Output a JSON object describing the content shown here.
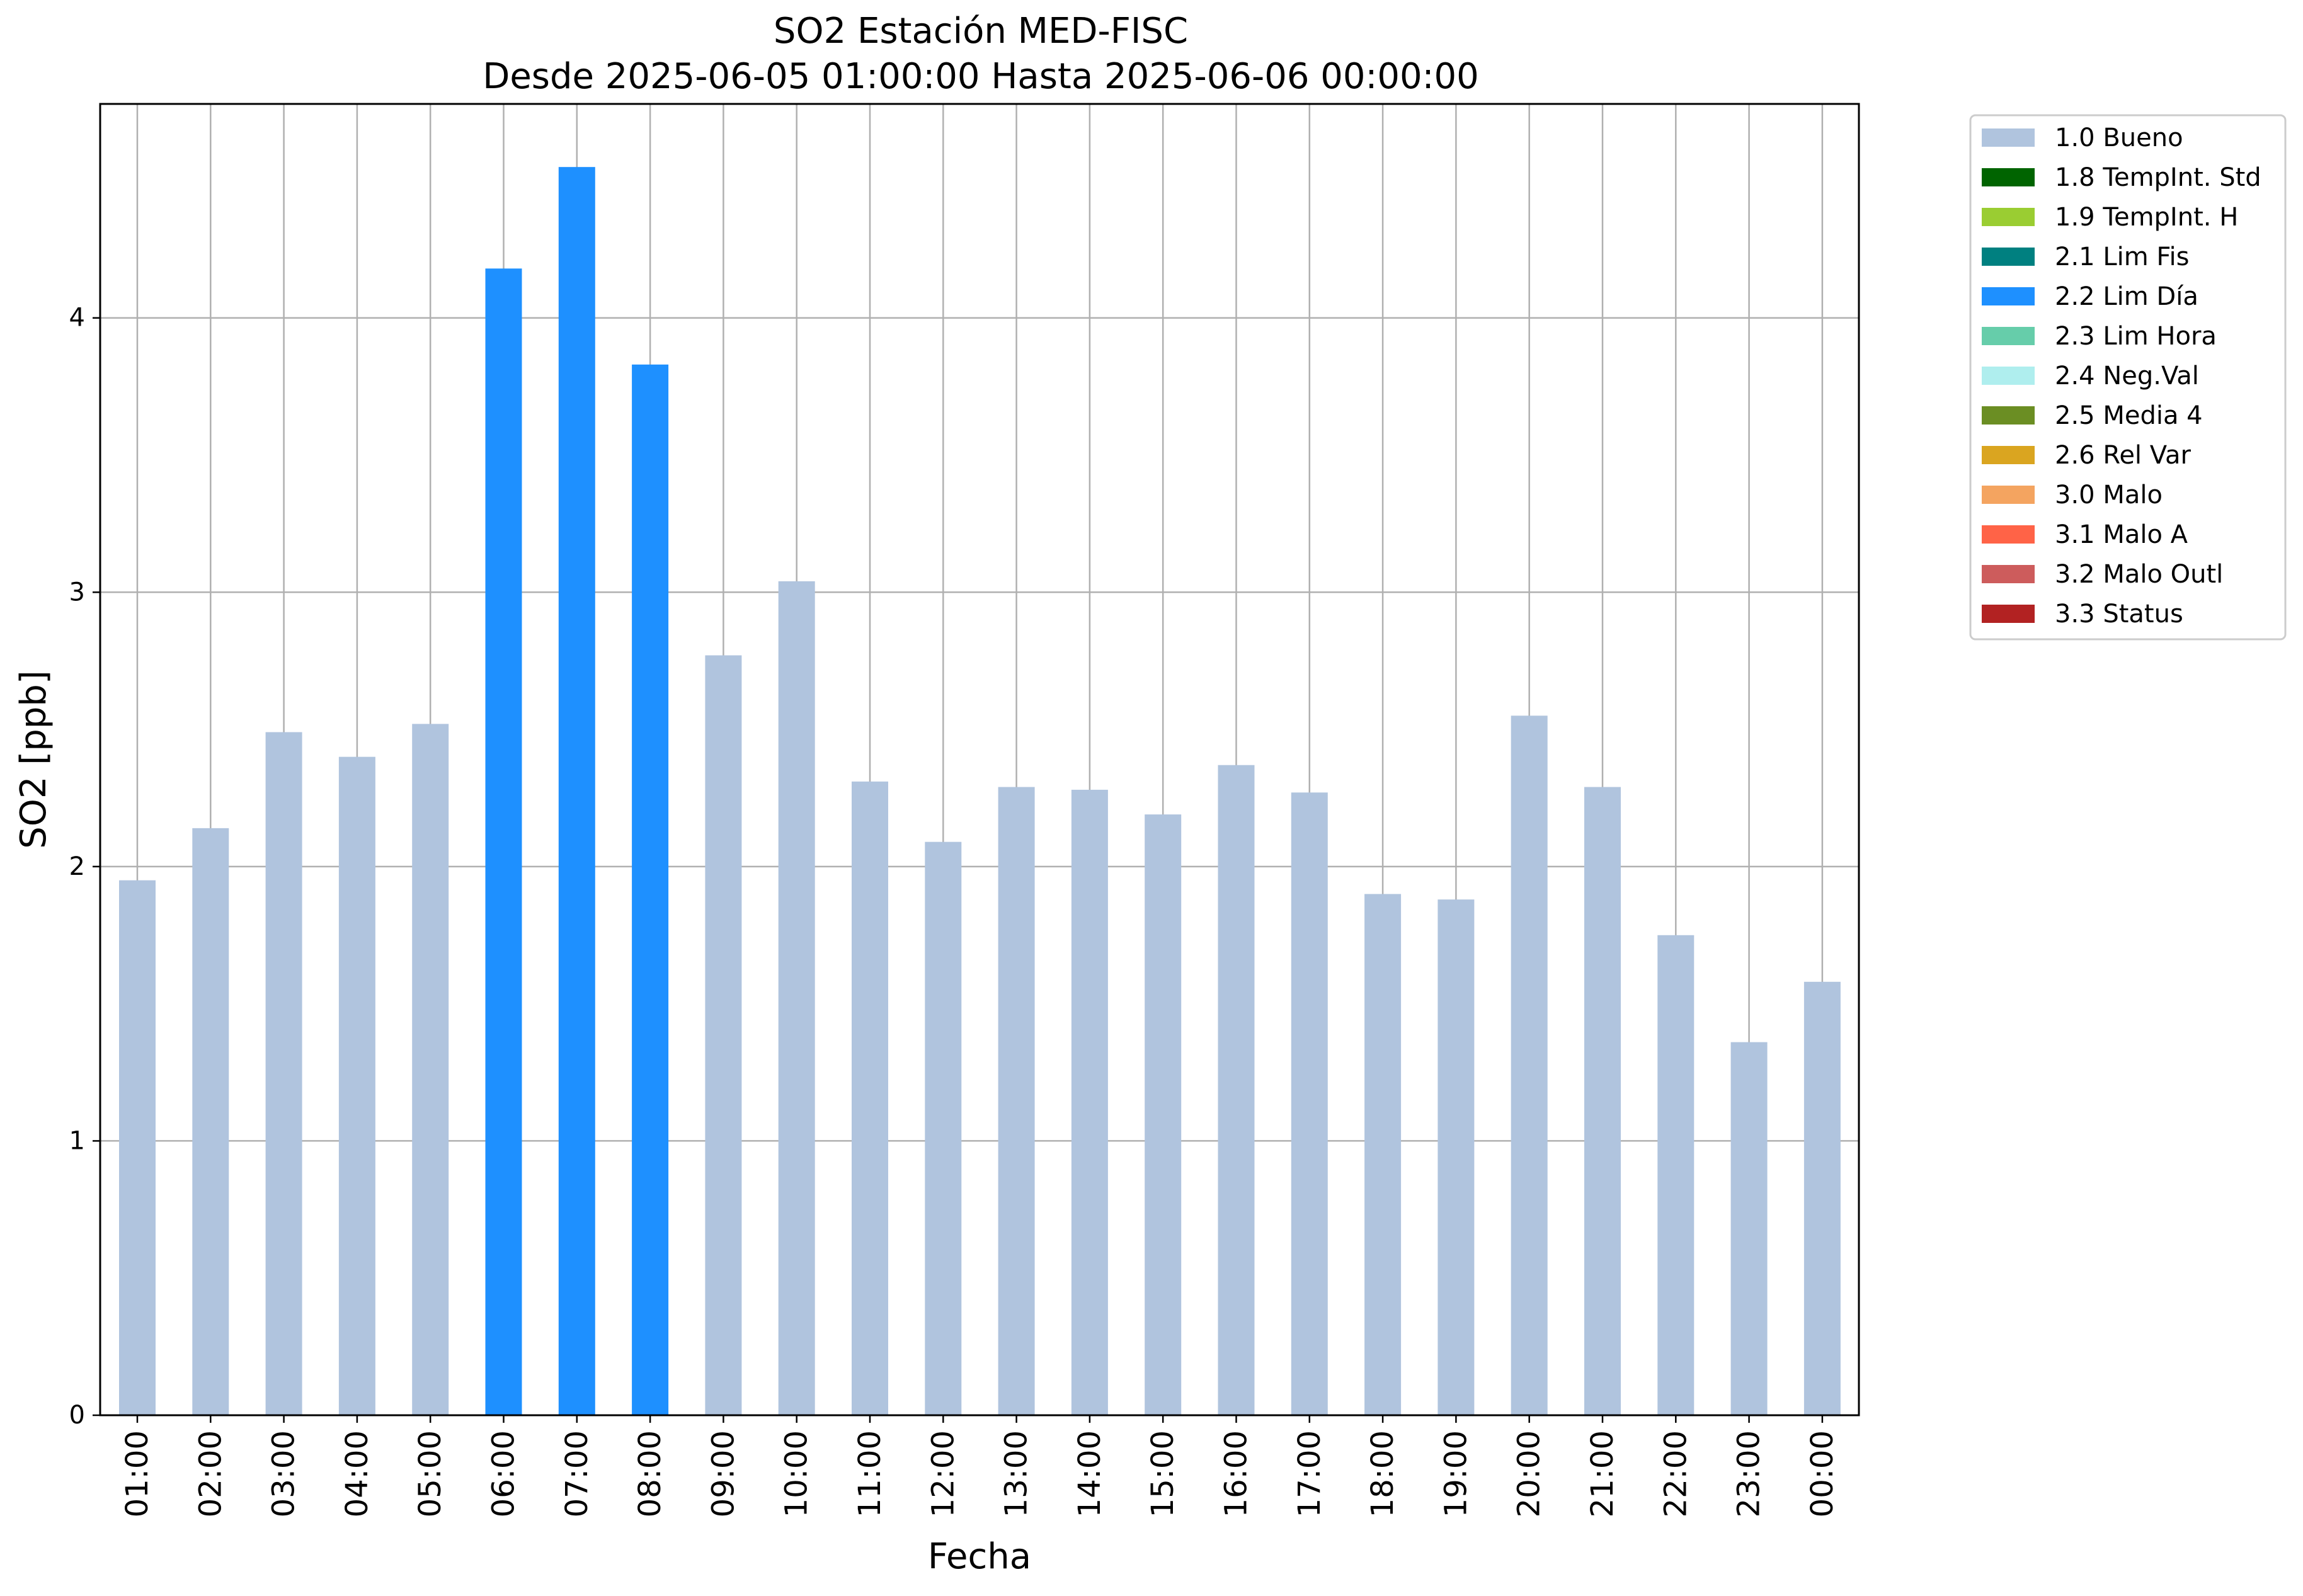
{
  "chart_data": {
    "type": "bar",
    "title": "SO2 Estación MED-FISC",
    "subtitle": "Desde 2025-06-05 01:00:00 Hasta 2025-06-06 00:00:00",
    "xlabel": "Fecha",
    "ylabel": "SO2 [ppb]",
    "ylim": [
      0,
      4.78
    ],
    "yticks": [
      0,
      1,
      2,
      3,
      4
    ],
    "grid": true,
    "legend_position": "outside-right-top",
    "categories": [
      "01:00",
      "02:00",
      "03:00",
      "04:00",
      "05:00",
      "06:00",
      "07:00",
      "08:00",
      "09:00",
      "10:00",
      "11:00",
      "12:00",
      "13:00",
      "14:00",
      "15:00",
      "16:00",
      "17:00",
      "18:00",
      "19:00",
      "20:00",
      "21:00",
      "22:00",
      "23:00",
      "00:00"
    ],
    "values": [
      1.95,
      2.14,
      2.49,
      2.4,
      2.52,
      4.18,
      4.55,
      3.83,
      2.77,
      3.04,
      2.31,
      2.09,
      2.29,
      2.28,
      2.19,
      2.37,
      2.27,
      1.9,
      1.88,
      2.55,
      2.29,
      1.75,
      1.36,
      1.58
    ],
    "flags": [
      "1.0 Bueno",
      "1.0 Bueno",
      "1.0 Bueno",
      "1.0 Bueno",
      "1.0 Bueno",
      "2.2 Lim Día",
      "2.2 Lim Día",
      "2.2 Lim Día",
      "1.0 Bueno",
      "1.0 Bueno",
      "1.0 Bueno",
      "1.0 Bueno",
      "1.0 Bueno",
      "1.0 Bueno",
      "1.0 Bueno",
      "1.0 Bueno",
      "1.0 Bueno",
      "1.0 Bueno",
      "1.0 Bueno",
      "1.0 Bueno",
      "1.0 Bueno",
      "1.0 Bueno",
      "1.0 Bueno",
      "1.0 Bueno"
    ],
    "legend": [
      {
        "label": "1.0 Bueno",
        "color": "#b0c4de"
      },
      {
        "label": "1.8 TempInt. Std",
        "color": "#006400"
      },
      {
        "label": "1.9 TempInt. H",
        "color": "#9acd32"
      },
      {
        "label": "2.1 Lim Fis",
        "color": "#008080"
      },
      {
        "label": "2.2 Lim Día",
        "color": "#1e90ff"
      },
      {
        "label": "2.3 Lim Hora",
        "color": "#66cdaa"
      },
      {
        "label": "2.4 Neg.Val",
        "color": "#afeeee"
      },
      {
        "label": "2.5 Media 4",
        "color": "#6b8e23"
      },
      {
        "label": "2.6 Rel Var",
        "color": "#daa520"
      },
      {
        "label": "3.0 Malo",
        "color": "#f4a460"
      },
      {
        "label": "3.1 Malo A",
        "color": "#ff6347"
      },
      {
        "label": "3.2 Malo Outl",
        "color": "#cd5c5c"
      },
      {
        "label": "3.3 Status",
        "color": "#b22222"
      }
    ]
  }
}
